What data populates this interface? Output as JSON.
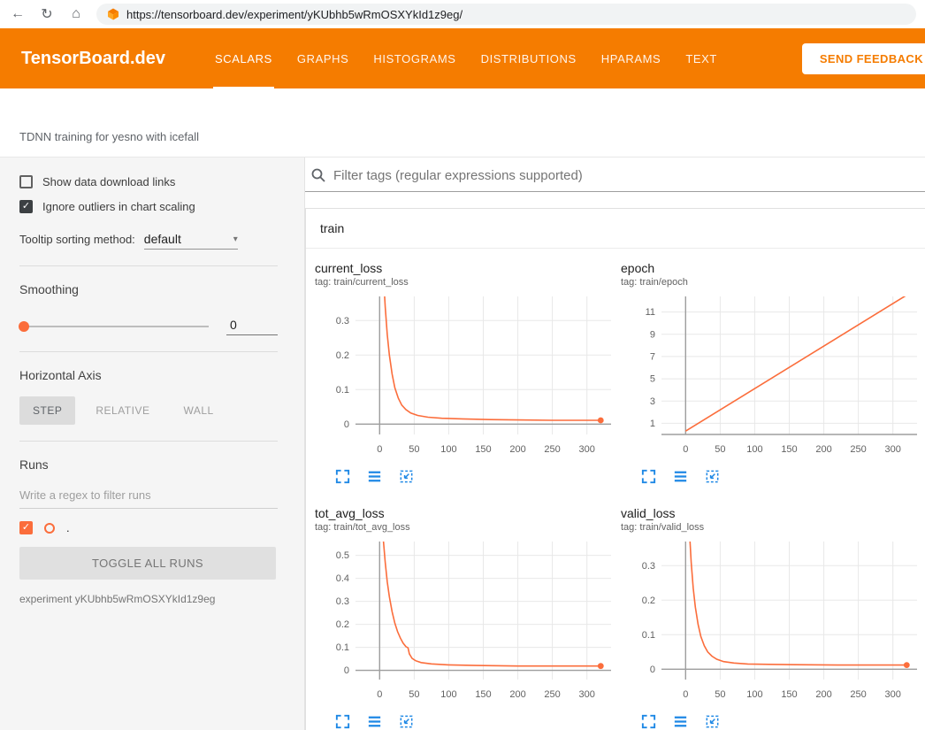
{
  "browser": {
    "url": "https://tensorboard.dev/experiment/yKUbhb5wRmOSXYkId1z9eg/"
  },
  "icons": {
    "back": "←",
    "reload": "↻",
    "home": "⌂",
    "caret_down": "▾",
    "check": "✓"
  },
  "header": {
    "logo": "TensorBoard.dev",
    "tabs": [
      {
        "label": "SCALARS",
        "active": true
      },
      {
        "label": "GRAPHS",
        "active": false
      },
      {
        "label": "HISTOGRAMS",
        "active": false
      },
      {
        "label": "DISTRIBUTIONS",
        "active": false
      },
      {
        "label": "HPARAMS",
        "active": false
      },
      {
        "label": "TEXT",
        "active": false
      }
    ],
    "feedback_button": "SEND FEEDBACK"
  },
  "subheader": {
    "experiment_title": "TDNN training for yesno with icefall"
  },
  "sidebar": {
    "show_download_label": "Show data download links",
    "ignore_outliers_label": "Ignore outliers in chart scaling",
    "tooltip_sorting_label": "Tooltip sorting method:",
    "tooltip_sorting_value": "default",
    "smoothing_label": "Smoothing",
    "smoothing_value": "0",
    "horizontal_axis_label": "Horizontal Axis",
    "haxis_options": [
      {
        "label": "STEP",
        "active": true
      },
      {
        "label": "RELATIVE",
        "active": false
      },
      {
        "label": "WALL",
        "active": false
      }
    ],
    "runs_label": "Runs",
    "runs_filter_placeholder": "Write a regex to filter runs",
    "run_name": ".",
    "toggle_all_button": "TOGGLE ALL RUNS",
    "experiment_caption": "experiment yKUbhb5wRmOSXYkId1z9eg"
  },
  "main": {
    "filter_placeholder": "Filter tags (regular expressions supported)",
    "section_title": "train"
  },
  "colors": {
    "header_orange": "#f57c00",
    "run_color": "#fb6d3b",
    "toolbar_icon_blue": "#1e88e5",
    "grid_line": "#e8e8e8",
    "axis_line": "#9e9e9e"
  },
  "chart_data": [
    {
      "type": "line",
      "title": "current_loss",
      "tag": "tag: train/current_loss",
      "x_ticks": [
        0,
        50,
        100,
        150,
        200,
        250,
        300
      ],
      "y_ticks": [
        0,
        0.1,
        0.2,
        0.3
      ],
      "xlim": [
        -35,
        335
      ],
      "ylim": [
        -0.03,
        0.37
      ],
      "series": [
        {
          "name": ".",
          "points": [
            [
              2,
              0.58
            ],
            [
              5,
              0.45
            ],
            [
              8,
              0.34
            ],
            [
              11,
              0.26
            ],
            [
              14,
              0.2
            ],
            [
              18,
              0.145
            ],
            [
              22,
              0.105
            ],
            [
              27,
              0.075
            ],
            [
              32,
              0.055
            ],
            [
              38,
              0.042
            ],
            [
              45,
              0.032
            ],
            [
              55,
              0.025
            ],
            [
              70,
              0.02
            ],
            [
              90,
              0.017
            ],
            [
              120,
              0.015
            ],
            [
              160,
              0.013
            ],
            [
              200,
              0.012
            ],
            [
              250,
              0.011
            ],
            [
              320,
              0.011
            ]
          ]
        }
      ],
      "end_dot": [
        320,
        0.011
      ]
    },
    {
      "type": "line",
      "title": "epoch",
      "tag": "tag: train/epoch",
      "x_ticks": [
        0,
        50,
        100,
        150,
        200,
        250,
        300
      ],
      "y_ticks": [
        1,
        3,
        5,
        7,
        9,
        11
      ],
      "xlim": [
        -35,
        335
      ],
      "ylim": [
        0,
        12.4
      ],
      "series": [
        {
          "name": ".",
          "points": [
            [
              0,
              0.3
            ],
            [
              330,
              12.9
            ]
          ]
        }
      ],
      "end_dot": null
    },
    {
      "type": "line",
      "title": "tot_avg_loss",
      "tag": "tag: train/tot_avg_loss",
      "x_ticks": [
        0,
        50,
        100,
        150,
        200,
        250,
        300
      ],
      "y_ticks": [
        0,
        0.1,
        0.2,
        0.3,
        0.4,
        0.5
      ],
      "xlim": [
        -35,
        335
      ],
      "ylim": [
        -0.04,
        0.56
      ],
      "series": [
        {
          "name": ".",
          "points": [
            [
              2,
              0.72
            ],
            [
              5,
              0.58
            ],
            [
              8,
              0.47
            ],
            [
              11,
              0.385
            ],
            [
              14,
              0.32
            ],
            [
              18,
              0.255
            ],
            [
              22,
              0.205
            ],
            [
              26,
              0.168
            ],
            [
              30,
              0.14
            ],
            [
              34,
              0.118
            ],
            [
              38,
              0.103
            ],
            [
              41,
              0.098
            ],
            [
              43,
              0.072
            ],
            [
              47,
              0.052
            ],
            [
              52,
              0.042
            ],
            [
              60,
              0.034
            ],
            [
              75,
              0.028
            ],
            [
              100,
              0.024
            ],
            [
              140,
              0.021
            ],
            [
              200,
              0.019
            ],
            [
              260,
              0.019
            ],
            [
              320,
              0.019
            ]
          ]
        }
      ],
      "end_dot": [
        320,
        0.019
      ]
    },
    {
      "type": "line",
      "title": "valid_loss",
      "tag": "tag: train/valid_loss",
      "x_ticks": [
        0,
        50,
        100,
        150,
        200,
        250,
        300
      ],
      "y_ticks": [
        0,
        0.1,
        0.2,
        0.3
      ],
      "xlim": [
        -35,
        335
      ],
      "ylim": [
        -0.03,
        0.37
      ],
      "series": [
        {
          "name": ".",
          "points": [
            [
              2,
              0.55
            ],
            [
              5,
              0.42
            ],
            [
              8,
              0.31
            ],
            [
              11,
              0.235
            ],
            [
              14,
              0.18
            ],
            [
              18,
              0.13
            ],
            [
              22,
              0.095
            ],
            [
              27,
              0.068
            ],
            [
              32,
              0.05
            ],
            [
              38,
              0.038
            ],
            [
              45,
              0.029
            ],
            [
              55,
              0.022
            ],
            [
              70,
              0.018
            ],
            [
              90,
              0.015
            ],
            [
              120,
              0.014
            ],
            [
              160,
              0.013
            ],
            [
              220,
              0.012
            ],
            [
              320,
              0.012
            ]
          ]
        }
      ],
      "end_dot": [
        320,
        0.012
      ]
    }
  ]
}
